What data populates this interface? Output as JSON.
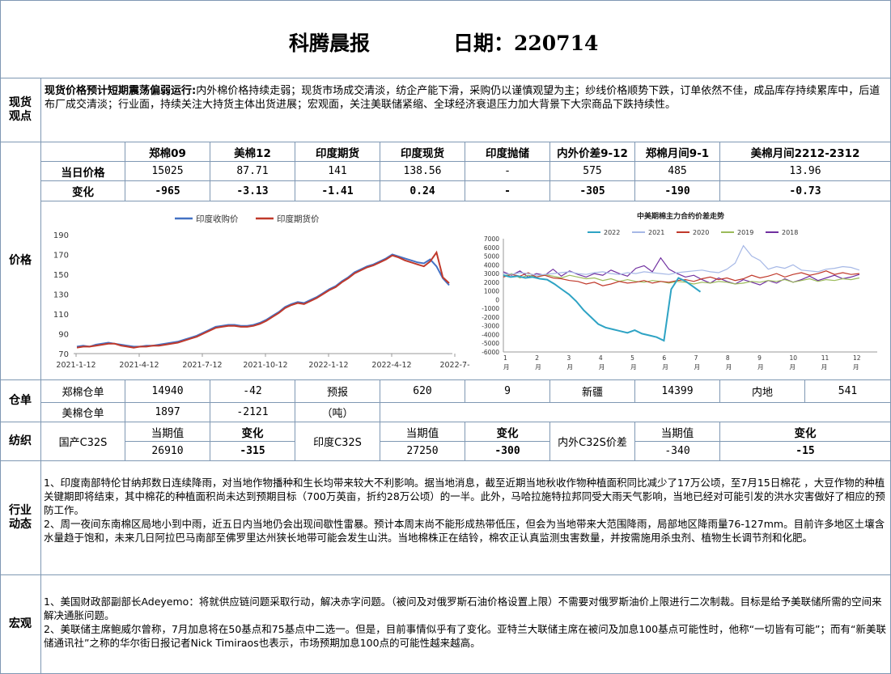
{
  "header": {
    "title": "科腾晨报",
    "date_label": "日期：220714"
  },
  "sections": {
    "spot": "现货\n观点",
    "price": "价格",
    "warehouse": "仓单",
    "spinning": "纺织",
    "industry": "行业\n动态",
    "macro": "宏观"
  },
  "spot_view": {
    "lead": "现货价格预计短期震荡偏弱运行:",
    "body": "内外棉价格持续走弱；现货市场成交清淡，纺企产能下滑，采购仍以谨慎观望为主；纱线价格顺势下跌，订单依然不佳，成品库存持续累库中，后道布厂成交清淡；行业面，持续关注大持货主体出货进展；宏观面，关注美联储紧缩、全球经济衰退压力加大背景下大宗商品下跌持续性。"
  },
  "price_table": {
    "headers": [
      "郑棉09",
      "美棉12",
      "印度期货",
      "印度现货",
      "印度抛储",
      "内外价差9-12",
      "郑棉月间9-1",
      "美棉月间2212-2312"
    ],
    "rows": [
      {
        "label": "当日价格",
        "values": [
          "15025",
          "87.71",
          "141",
          "138.56",
          "-",
          "575",
          "485",
          "13.96"
        ]
      },
      {
        "label": "变化",
        "values": [
          "-965",
          "-3.13",
          "-1.41",
          "0.24",
          "-",
          "-305",
          "-190",
          "-0.73"
        ]
      }
    ]
  },
  "chart_data": [
    {
      "type": "line",
      "series": [
        {
          "name": "印度收购价",
          "color": "#4472c4",
          "values": [
            77,
            78,
            77,
            79,
            80,
            81,
            80,
            79,
            78,
            77,
            77,
            78,
            78,
            79,
            80,
            81,
            82,
            84,
            86,
            88,
            91,
            94,
            97,
            98,
            99,
            99,
            98,
            98,
            99,
            101,
            104,
            108,
            112,
            117,
            120,
            122,
            121,
            124,
            127,
            131,
            135,
            138,
            143,
            147,
            152,
            155,
            158,
            160,
            163,
            166,
            170,
            168,
            166,
            164,
            162,
            161,
            165,
            158,
            146,
            139
          ]
        },
        {
          "name": "印度期货价",
          "color": "#c0392b",
          "values": [
            76,
            77,
            77,
            78,
            79,
            80,
            80,
            78,
            77,
            76,
            77,
            77,
            78,
            78,
            79,
            80,
            81,
            83,
            85,
            87,
            90,
            93,
            96,
            97,
            98,
            98,
            97,
            97,
            98,
            100,
            103,
            107,
            111,
            116,
            119,
            121,
            120,
            123,
            126,
            130,
            134,
            137,
            142,
            146,
            151,
            154,
            157,
            159,
            162,
            165,
            169,
            167,
            164,
            162,
            160,
            158,
            163,
            172,
            147,
            141
          ]
        }
      ],
      "x_ticks": [
        "2021-1-12",
        "2021-4-12",
        "2021-7-12",
        "2021-10-12",
        "2022-1-12",
        "2022-4-12",
        "2022-7-"
      ],
      "ylim": [
        70,
        190
      ],
      "y_ticks": [
        70,
        90,
        110,
        130,
        150,
        170,
        190
      ]
    },
    {
      "type": "line",
      "title": "中美期棉主力合约价差走势",
      "series": [
        {
          "name": "2022",
          "color": "#2ea3c4",
          "values": [
            2800,
            2600,
            2700,
            2500,
            2600,
            2400,
            2300,
            1800,
            1200,
            600,
            -200,
            -1200,
            -2000,
            -2800,
            -3200,
            -3400,
            -3600,
            -3800,
            -3500,
            -3900,
            -4100,
            -4300,
            -4700,
            1200,
            2500,
            2100,
            1500,
            900
          ]
        },
        {
          "name": "2021",
          "color": "#a6b8e6",
          "values": [
            3000,
            2900,
            3100,
            3000,
            2800,
            2900,
            3000,
            3100,
            3200,
            3000,
            2900,
            3100,
            3200,
            3000,
            2900,
            3100,
            3000,
            3200,
            3100,
            3000,
            2900,
            3100,
            3200,
            3300,
            3400,
            3200,
            3100,
            3500,
            4200,
            6200,
            5000,
            4500,
            3500,
            3800,
            3600,
            4000,
            3400,
            3300,
            3200,
            3500,
            3600,
            3800,
            3700,
            3400
          ]
        },
        {
          "name": "2020",
          "color": "#c0392b",
          "values": [
            2600,
            2900,
            2700,
            3100,
            2600,
            2800,
            2500,
            2400,
            2200,
            2100,
            1800,
            2000,
            1600,
            1800,
            2100,
            1900,
            2000,
            2200,
            1900,
            2100,
            2000,
            2200,
            2300,
            2100,
            2400,
            2600,
            2300,
            2500,
            2200,
            2400,
            2800,
            2500,
            2700,
            3000,
            2600,
            2900,
            3100,
            2800,
            3000,
            3300,
            2900,
            3100,
            2900,
            3000
          ]
        },
        {
          "name": "2019",
          "color": "#9bbb59",
          "values": [
            2700,
            3000,
            2500,
            2800,
            2600,
            2900,
            2700,
            2500,
            2800,
            2600,
            2400,
            2500,
            2200,
            2400,
            2100,
            2300,
            2100,
            2000,
            2200,
            2100,
            1900,
            2100,
            2000,
            1800,
            2000,
            1900,
            2100,
            2000,
            1800,
            1900,
            2100,
            2000,
            2200,
            2100,
            2300,
            2000,
            2200,
            2400,
            2100,
            2300,
            2200,
            2400,
            2300,
            2500
          ]
        },
        {
          "name": "2018",
          "color": "#7030a0",
          "values": [
            3200,
            2800,
            3300,
            2600,
            3000,
            2800,
            3500,
            2700,
            3300,
            2900,
            2600,
            3000,
            2800,
            3400,
            3000,
            2700,
            3600,
            3900,
            3200,
            4800,
            3500,
            3000,
            2600,
            2800,
            2300,
            1900,
            2500,
            2100,
            1800,
            2300,
            2000,
            1700,
            2200,
            1900,
            2400,
            2000,
            2300,
            2700,
            2200,
            2500,
            2800,
            2400,
            2600,
            2900
          ]
        }
      ],
      "x_ticks": [
        "1\n月",
        "2\n月",
        "3\n月",
        "4\n月",
        "5\n月",
        "6\n月",
        "7\n月",
        "8\n月",
        "9\n月",
        "10\n月",
        "11\n月",
        "12\n月"
      ],
      "ylim": [
        -6000,
        7000
      ],
      "y_ticks": [
        7000,
        6000,
        5000,
        4000,
        3000,
        2000,
        1000,
        0,
        -1000,
        -2000,
        -3000,
        -4000,
        -5000,
        -6000
      ]
    }
  ],
  "warehouse": {
    "row1": [
      "郑棉仓单",
      "14940",
      "-42",
      "预报",
      "620",
      "9",
      "新疆",
      "14399",
      "内地",
      "541"
    ],
    "row2": [
      "美棉仓单",
      "1897",
      "-2121",
      "（吨）"
    ]
  },
  "spinning": {
    "head": [
      "当期值",
      "变化",
      "当期值",
      "变化",
      "当期值",
      "变化"
    ],
    "labels": [
      "国产C32S",
      "印度C32S",
      "内外C32S价差"
    ],
    "values": [
      "26910",
      "-315",
      "27250",
      "-300",
      "-340",
      "-15"
    ]
  },
  "industry": {
    "p1": "1、印度南部特伦甘纳邦数日连续降雨，对当地作物播种和生长均带来较大不利影响。据当地消息，截至近期当地秋收作物种植面积同比减少了17万公顷，至7月15日棉花 ，大豆作物的种植关键期即将结束，其中棉花的种植面积尚未达到预期目标（700万英亩，折约28万公顷）的一半。此外，马哈拉施特拉邦同受大雨天气影响，当地已经对可能引发的洪水灾害做好了相应的预防工作。",
    "p2": "2、周一夜间东南棉区局地小到中雨，近五日内当地仍会出现间歇性雷暴。预计本周末尚不能形成热带低压，但会为当地带来大范围降雨，局部地区降雨量76-127mm。目前许多地区土壤含水量趋于饱和，未来几日阿拉巴马南部至佛罗里达州狭长地带可能会发生山洪。当地棉株正在结铃，棉农正认真监测虫害数量，并按需施用杀虫剂、植物生长调节剂和化肥。"
  },
  "macro": {
    "p1": "1、美国财政部副部长Adeyemo：将就供应链问题采取行动，解决赤字问题。（被问及对俄罗斯石油价格设置上限）不需要对俄罗斯油价上限进行二次制裁。目标是给予美联储所需的空间来解决通胀问题。",
    "p2": "2、美联储主席鲍威尔曾称，7月加息将在50基点和75基点中二选一。但是，目前事情似乎有了变化。亚特兰大联储主席在被问及加息100基点可能性时，他称“一切皆有可能”；而有“新美联储通讯社”之称的华尔街日报记者Nick Timiraos也表示，市场预期加息100点的可能性越来越高。"
  }
}
